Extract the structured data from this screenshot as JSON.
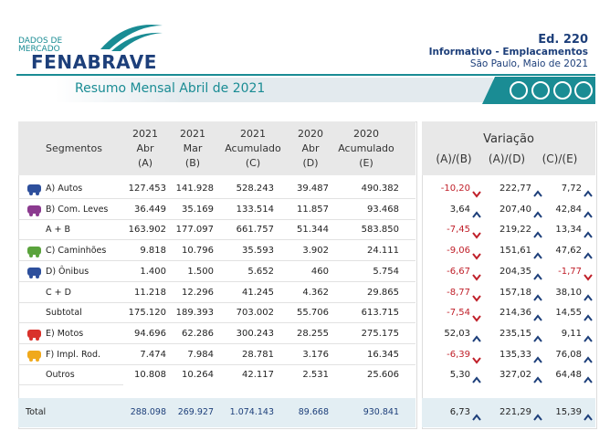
{
  "header": {
    "logo_top": [
      "DADOS DE",
      "MERCADO"
    ],
    "logo": "FENABRAVE",
    "edition": "Ed. 220",
    "subtitle": "Informativo - Emplacamentos",
    "place_date": "São Paulo, Maio de 2021"
  },
  "banner": "Resumo Mensal Abril de 2021",
  "table": {
    "segment_header": "Segmentos",
    "columns": [
      [
        "2021",
        "Abr",
        "(A)"
      ],
      [
        "2021",
        "Mar",
        "(B)"
      ],
      [
        "2021",
        "Acumulado",
        "(C)"
      ],
      [
        "2020",
        "Abr",
        "(D)"
      ],
      [
        "2020",
        "Acumulado",
        "(E)"
      ]
    ],
    "variation_header": "Variação",
    "variation_columns": [
      "(A)/(B)",
      "(A)/(D)",
      "(C)/(E)"
    ],
    "rows": [
      {
        "label": "A) Autos",
        "values": [
          "127.453",
          "141.928",
          "528.243",
          "39.487",
          "490.382"
        ],
        "variation": [
          "-10,20",
          "222,77",
          "7,72"
        ]
      },
      {
        "label": "B) Com. Leves",
        "values": [
          "36.449",
          "35.169",
          "133.514",
          "11.857",
          "93.468"
        ],
        "variation": [
          "3,64",
          "207,40",
          "42,84"
        ]
      },
      {
        "label": "A + B",
        "values": [
          "163.902",
          "177.097",
          "661.757",
          "51.344",
          "583.850"
        ],
        "variation": [
          "-7,45",
          "219,22",
          "13,34"
        ]
      },
      {
        "label": "C) Caminhões",
        "values": [
          "9.818",
          "10.796",
          "35.593",
          "3.902",
          "24.111"
        ],
        "variation": [
          "-9,06",
          "151,61",
          "47,62"
        ]
      },
      {
        "label": "D) Ônibus",
        "values": [
          "1.400",
          "1.500",
          "5.652",
          "460",
          "5.754"
        ],
        "variation": [
          "-6,67",
          "204,35",
          "-1,77"
        ]
      },
      {
        "label": "C + D",
        "values": [
          "11.218",
          "12.296",
          "41.245",
          "4.362",
          "29.865"
        ],
        "variation": [
          "-8,77",
          "157,18",
          "38,10"
        ]
      },
      {
        "label": "Subtotal",
        "values": [
          "175.120",
          "189.393",
          "703.002",
          "55.706",
          "613.715"
        ],
        "variation": [
          "-7,54",
          "214,36",
          "14,55"
        ]
      },
      {
        "label": "E) Motos",
        "values": [
          "94.696",
          "62.286",
          "300.243",
          "28.255",
          "275.175"
        ],
        "variation": [
          "52,03",
          "235,15",
          "9,11"
        ]
      },
      {
        "label": "F) Impl. Rod.",
        "values": [
          "7.474",
          "7.984",
          "28.781",
          "3.176",
          "16.345"
        ],
        "variation": [
          "-6,39",
          "135,33",
          "76,08"
        ]
      },
      {
        "label": "Outros",
        "values": [
          "10.808",
          "10.264",
          "42.117",
          "2.531",
          "25.606"
        ],
        "variation": [
          "5,30",
          "327,02",
          "64,48"
        ]
      }
    ],
    "total": {
      "label": "Total",
      "values": [
        "288.098",
        "269.927",
        "1.074.143",
        "89.668",
        "930.841"
      ],
      "variation": [
        "6,73",
        "221,29",
        "15,39"
      ]
    }
  }
}
